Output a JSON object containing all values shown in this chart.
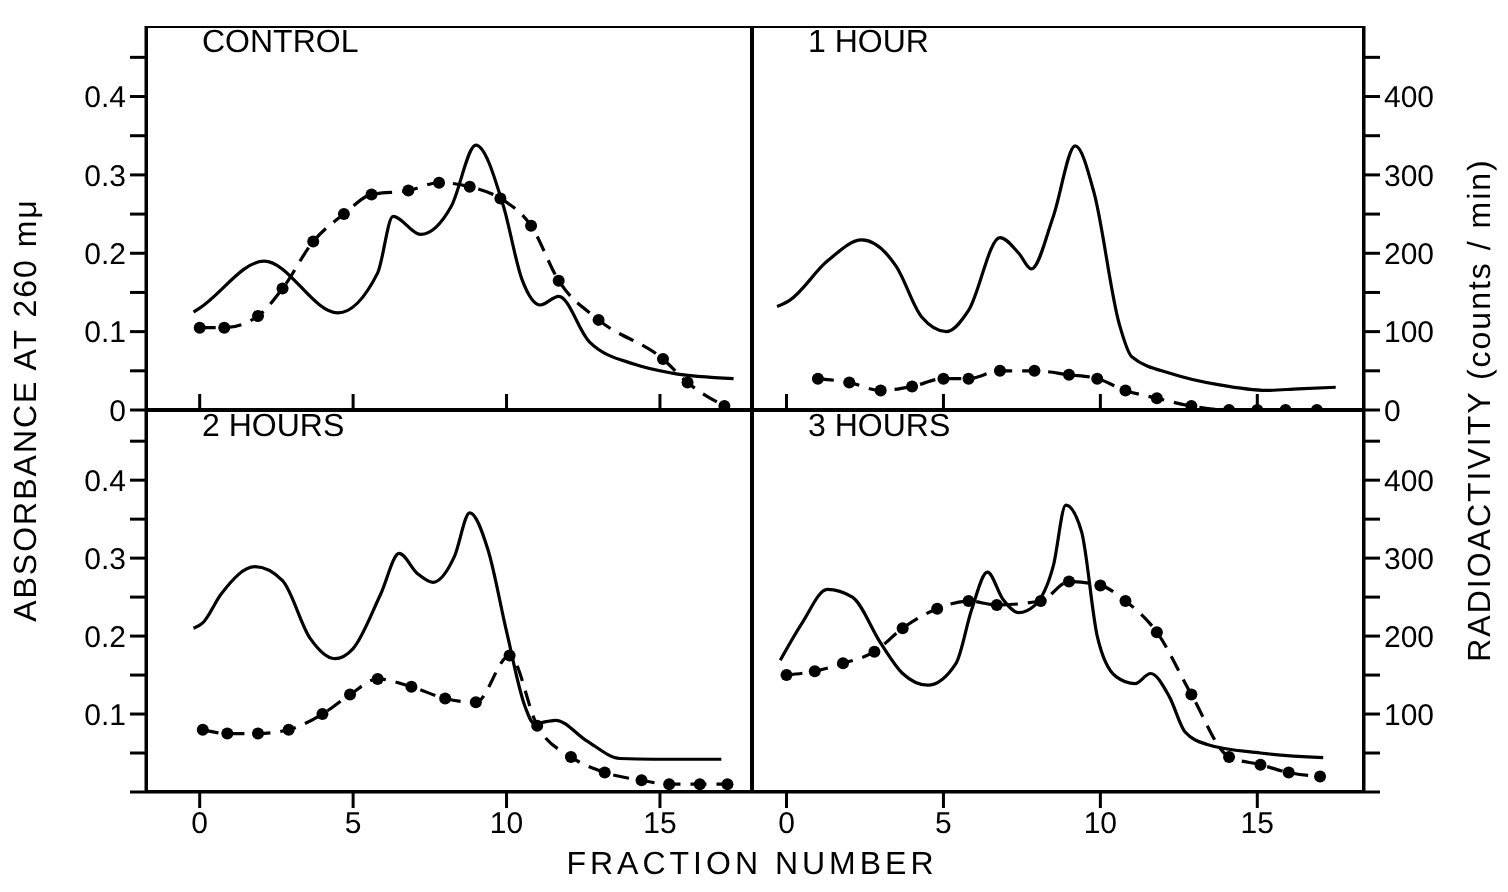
{
  "chart_data": [
    {
      "type": "line",
      "title": "CONTROL",
      "ylabel": "ABSORBANCE AT 260 mμ",
      "xlim": [
        -1.75,
        18.0
      ],
      "xticks": [
        {
          "value": 0,
          "label": null
        },
        {
          "value": 5,
          "label": null
        },
        {
          "value": 10,
          "label": null
        },
        {
          "value": 15,
          "label": null
        }
      ],
      "ylim": [
        0,
        0.49
      ],
      "yticks": [
        0,
        {
          "value": 0.05,
          "label": null
        },
        0.1,
        {
          "value": 0.15,
          "label": null
        },
        0.2,
        {
          "value": 0.25,
          "label": null
        },
        0.3,
        {
          "value": 0.35,
          "label": null
        },
        0.4,
        {
          "value": 0.45,
          "label": null
        }
      ],
      "y2lim": [
        0,
        490
      ],
      "tick_labels": "y",
      "series": [
        {
          "color": "#000000",
          "line_style": "solid",
          "marker": "none",
          "x": [
            -0.2,
            0,
            2.1,
            4.5,
            5.8,
            6.3,
            7.2,
            8.2,
            9.0,
            9.9,
            10.5,
            11.1,
            11.7,
            12.7,
            14.2,
            15.4,
            17.4
          ],
          "values": [
            0.125,
            0.13,
            0.19,
            0.124,
            0.175,
            0.247,
            0.224,
            0.26,
            0.338,
            0.26,
            0.167,
            0.134,
            0.145,
            0.087,
            0.058,
            0.047,
            0.04
          ]
        },
        {
          "color": "#000000",
          "line_style": "dashed",
          "marker": "circle",
          "axis": "y2",
          "x": [
            0,
            0.8,
            1.9,
            2.7,
            3.7,
            4.7,
            5.6,
            6.8,
            7.8,
            8.8,
            9.8,
            10.8,
            11.7,
            13.0,
            15.1,
            15.9,
            17.1
          ],
          "values": [
            105,
            105,
            120,
            155,
            215,
            250,
            275,
            280,
            290,
            285,
            270,
            235,
            165,
            115,
            65,
            35,
            5
          ]
        }
      ]
    },
    {
      "type": "line",
      "title": "1 HOUR",
      "y2label": "RADIOACTIVITY (counts / min)",
      "xlim": [
        -1.1,
        18.4
      ],
      "xticks": [
        {
          "value": 0,
          "label": null
        },
        {
          "value": 5,
          "label": null
        },
        {
          "value": 10,
          "label": null
        },
        {
          "value": 15,
          "label": null
        }
      ],
      "ylim": [
        0,
        0.49
      ],
      "y2lim": [
        0,
        490
      ],
      "y2ticks": [
        0,
        {
          "value": 50,
          "label": null
        },
        100,
        {
          "value": 150,
          "label": null
        },
        200,
        {
          "value": 250,
          "label": null
        },
        300,
        {
          "value": 350,
          "label": null
        },
        400,
        {
          "value": 450,
          "label": null
        }
      ],
      "tick_labels": "y",
      "series": [
        {
          "color": "#000000",
          "line_style": "solid",
          "marker": "none",
          "x": [
            -0.3,
            0.1,
            1.3,
            2.4,
            3.5,
            4.3,
            5.1,
            5.8,
            6.8,
            7.4,
            7.8,
            8.5,
            9.2,
            9.8,
            10.6,
            11.0,
            12.3,
            13.8,
            15.3,
            16.3,
            17.5
          ],
          "values": [
            0.132,
            0.14,
            0.19,
            0.217,
            0.183,
            0.119,
            0.1,
            0.127,
            0.22,
            0.2,
            0.18,
            0.247,
            0.337,
            0.277,
            0.11,
            0.068,
            0.046,
            0.032,
            0.025,
            0.027,
            0.029
          ]
        },
        {
          "color": "#000000",
          "line_style": "dashed",
          "marker": "circle",
          "axis": "y2",
          "x": [
            1.0,
            2.0,
            3.0,
            4.0,
            5.0,
            5.8,
            6.8,
            7.9,
            9.0,
            9.9,
            10.8,
            11.8,
            12.9,
            14.1,
            15.0,
            15.9,
            16.9
          ],
          "values": [
            40,
            35,
            25,
            30,
            40,
            40,
            50,
            50,
            45,
            40,
            25,
            15,
            5,
            0,
            0,
            0,
            0
          ]
        }
      ]
    },
    {
      "type": "line",
      "title": "2 HOURS",
      "xlabel": "FRACTION NUMBER",
      "xlim": [
        -1.75,
        18.0
      ],
      "xticks": [
        0,
        5,
        10,
        15
      ],
      "ylim": [
        0,
        0.49
      ],
      "yticks": [
        {
          "value": 0,
          "label": null
        },
        {
          "value": 0.05,
          "label": null
        },
        0.1,
        {
          "value": 0.15,
          "label": null
        },
        0.2,
        {
          "value": 0.25,
          "label": null
        },
        0.3,
        {
          "value": 0.35,
          "label": null
        },
        0.4,
        {
          "value": 0.45,
          "label": null
        }
      ],
      "y2lim": [
        0,
        490
      ],
      "series": [
        {
          "color": "#000000",
          "line_style": "solid",
          "marker": "none",
          "x": [
            -0.2,
            0.1,
            0.7,
            1.8,
            2.7,
            3.6,
            4.4,
            5.0,
            5.9,
            6.5,
            7.1,
            7.6,
            8.3,
            8.8,
            9.4,
            10.0,
            10.6,
            10.9,
            11.6,
            12.6,
            13.7,
            14.8,
            17.0
          ],
          "values": [
            0.21,
            0.217,
            0.254,
            0.289,
            0.271,
            0.197,
            0.171,
            0.184,
            0.254,
            0.306,
            0.28,
            0.269,
            0.302,
            0.358,
            0.31,
            0.206,
            0.11,
            0.088,
            0.092,
            0.066,
            0.043,
            0.042,
            0.042
          ]
        },
        {
          "color": "#000000",
          "line_style": "dashed",
          "marker": "circle",
          "axis": "y2",
          "x": [
            0.1,
            0.9,
            1.9,
            2.9,
            4.0,
            4.9,
            5.8,
            6.9,
            8.0,
            9.0,
            10.1,
            11.0,
            12.1,
            13.2,
            14.4,
            15.3,
            16.3,
            17.2
          ],
          "values": [
            80,
            75,
            75,
            80,
            100,
            125,
            145,
            135,
            120,
            115,
            175,
            85,
            45,
            25,
            15,
            10,
            10,
            10
          ]
        }
      ]
    },
    {
      "type": "line",
      "title": "3 HOURS",
      "xlim": [
        -1.1,
        18.4
      ],
      "xticks": [
        0,
        5,
        10,
        15
      ],
      "ylim": [
        0,
        0.49
      ],
      "y2lim": [
        0,
        490
      ],
      "y2ticks": [
        {
          "value": 0,
          "label": null
        },
        {
          "value": 50,
          "label": null
        },
        100,
        {
          "value": 150,
          "label": null
        },
        200,
        {
          "value": 250,
          "label": null
        },
        300,
        {
          "value": 350,
          "label": null
        },
        400,
        {
          "value": 450,
          "label": null
        }
      ],
      "series": [
        {
          "color": "#000000",
          "line_style": "solid",
          "marker": "none",
          "x": [
            -0.2,
            0.5,
            1.3,
            2.1,
            3.0,
            3.7,
            4.5,
            5.4,
            5.9,
            6.4,
            6.9,
            7.4,
            7.9,
            8.5,
            8.9,
            9.4,
            9.9,
            10.5,
            11.1,
            11.6,
            12.2,
            12.7,
            13.4,
            15.1,
            17.1
          ],
          "values": [
            0.169,
            0.217,
            0.26,
            0.25,
            0.191,
            0.152,
            0.137,
            0.165,
            0.234,
            0.282,
            0.247,
            0.23,
            0.239,
            0.29,
            0.368,
            0.334,
            0.2,
            0.148,
            0.139,
            0.152,
            0.122,
            0.077,
            0.061,
            0.05,
            0.044
          ]
        },
        {
          "color": "#000000",
          "line_style": "dashed",
          "marker": "circle",
          "axis": "y2",
          "x": [
            0,
            0.9,
            1.8,
            2.8,
            3.7,
            4.8,
            5.8,
            6.7,
            8.1,
            9.0,
            10.0,
            10.8,
            11.8,
            12.9,
            14.1,
            15.1,
            16.0,
            17.0
          ],
          "values": [
            150,
            155,
            165,
            180,
            210,
            235,
            245,
            240,
            245,
            270,
            265,
            245,
            205,
            125,
            45,
            35,
            25,
            20
          ]
        }
      ]
    }
  ]
}
